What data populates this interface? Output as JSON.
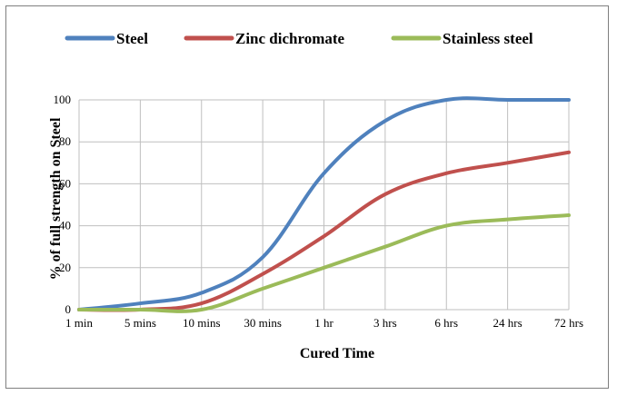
{
  "chart_data": {
    "type": "line",
    "categories": [
      "1 min",
      "5 mins",
      "10 mins",
      "30 mins",
      "1 hr",
      "3 hrs",
      "6 hrs",
      "24 hrs",
      "72 hrs"
    ],
    "xlabel": "Cured Time",
    "ylabel": "% of full strength on Steel",
    "ylim": [
      0,
      100
    ],
    "yticks": [
      0,
      20,
      40,
      60,
      80,
      100
    ],
    "grid": true,
    "legend_position": "top",
    "series": [
      {
        "name": "Steel",
        "color": "#4f81bd",
        "values": [
          0,
          3,
          8,
          25,
          65,
          90,
          100,
          100,
          100
        ]
      },
      {
        "name": "Zinc dichromate",
        "color": "#c0504d",
        "values": [
          0,
          0,
          3,
          17,
          35,
          55,
          65,
          70,
          75
        ]
      },
      {
        "name": "Stainless steel",
        "color": "#9bbb59",
        "values": [
          0,
          0,
          0,
          10,
          20,
          30,
          40,
          43,
          45
        ]
      }
    ]
  }
}
